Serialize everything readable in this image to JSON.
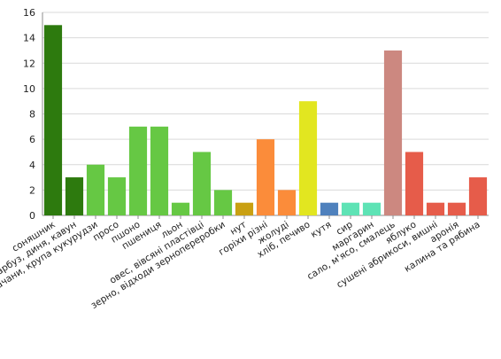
{
  "chart_data": {
    "type": "bar",
    "title": "",
    "xlabel": "",
    "ylabel": "",
    "ylim": [
      0,
      16
    ],
    "yticks": [
      0,
      2,
      4,
      6,
      8,
      10,
      12,
      14,
      16
    ],
    "grid": true,
    "legend": "none",
    "categories": [
      "соняшник",
      "гарбуз, диня, кавун",
      "качани, крупа кукурудзи",
      "просо",
      "пшоно",
      "пшениця",
      "льон",
      "овес, вівсяні пластівці",
      "зерно, відходи зернопереробки",
      "нут",
      "горіхи різні",
      "жолуді",
      "хліб, печиво",
      "кутя",
      "сир",
      "маргарин",
      "сало, м'ясо, смалець",
      "яблуко",
      "сушені абрикоси, вишні",
      "аронія",
      "калина та рябина"
    ],
    "values": [
      15,
      3,
      4,
      3,
      7,
      7,
      1,
      5,
      2,
      1,
      6,
      2,
      9,
      1,
      1,
      1,
      13,
      5,
      1,
      1,
      3
    ],
    "colors": [
      "#2d7a0e",
      "#2d7a0e",
      "#66c844",
      "#66c844",
      "#66c844",
      "#66c844",
      "#66c844",
      "#66c844",
      "#66c844",
      "#c9a012",
      "#fb8c3a",
      "#fb8c3a",
      "#e2e620",
      "#4f81bd",
      "#5ee3b5",
      "#5ee3b5",
      "#cc8880",
      "#e65c4a",
      "#e65c4a",
      "#e65c4a",
      "#e65c4a"
    ]
  }
}
